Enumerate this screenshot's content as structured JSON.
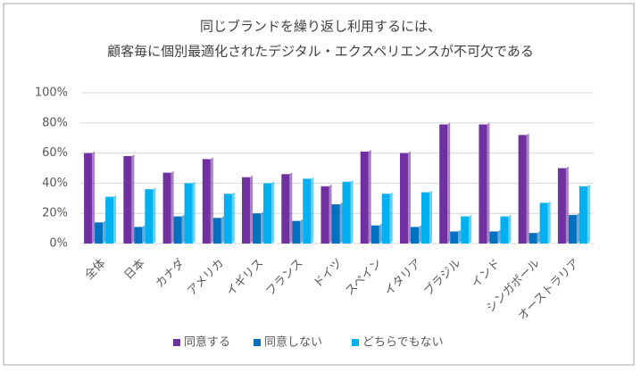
{
  "chart_data": {
    "type": "bar",
    "title_lines": [
      "同じブランドを繰り返し利用するには、",
      "顧客毎に個別最適化されたデジタル・エクスペリエンスが不可欠である"
    ],
    "categories": [
      "全体",
      "日本",
      "カナダ",
      "アメリカ",
      "イギリス",
      "フランス",
      "ドイツ",
      "スペイン",
      "イタリア",
      "ブラジル",
      "インド",
      "シンガポール",
      "オーストラリア"
    ],
    "series": [
      {
        "name": "同意する",
        "color": "#7030a0",
        "values": [
          60,
          58,
          47,
          56,
          44,
          46,
          38,
          61,
          60,
          79,
          79,
          72,
          50
        ]
      },
      {
        "name": "同意しない",
        "color": "#0070c0",
        "values": [
          14,
          11,
          18,
          17,
          20,
          15,
          26,
          12,
          11,
          8,
          8,
          7,
          19
        ]
      },
      {
        "name": "どちらでもない",
        "color": "#00b0f0",
        "values": [
          31,
          36,
          40,
          33,
          40,
          43,
          41,
          33,
          34,
          18,
          18,
          27,
          38
        ]
      }
    ],
    "ylim": [
      0,
      100
    ],
    "yticks": [
      {
        "value": 0,
        "label": "0%"
      },
      {
        "value": 20,
        "label": "20%"
      },
      {
        "value": 40,
        "label": "40%"
      },
      {
        "value": 60,
        "label": "60%"
      },
      {
        "value": 80,
        "label": "80%"
      },
      {
        "value": 100,
        "label": "100%"
      }
    ],
    "grid": true,
    "legend": "bottom"
  }
}
